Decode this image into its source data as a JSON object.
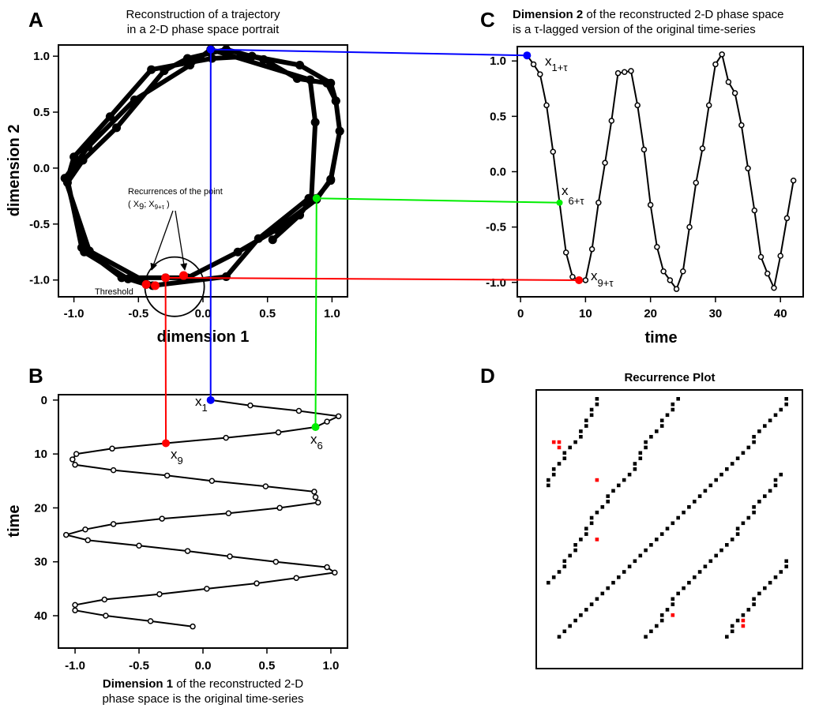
{
  "colors": {
    "blue": "#0000ff",
    "green": "#00ee00",
    "red": "#ff0000",
    "ink": "#000000"
  },
  "panels": {
    "A": {
      "letter": "A",
      "title": [
        "Reconstruction of a trajectory",
        "in a 2-D phase space portrait"
      ],
      "xlabel": "dimension 1",
      "ylabel": "dimension 2",
      "annotation": [
        "Recurrences of the point",
        "( X",
        "9",
        "; X",
        "9+τ",
        " )"
      ],
      "threshold_label": "Threshold"
    },
    "B": {
      "letter": "B",
      "ylabel": "time",
      "caption_bold": "Dimension 1",
      "caption_rest": " of the reconstructed 2-D",
      "caption_line2": "phase space is the original time-series",
      "labels": [
        {
          "main": "x",
          "sub": "1"
        },
        {
          "main": "x",
          "sub": "6"
        },
        {
          "main": "x",
          "sub": "9"
        }
      ]
    },
    "C": {
      "letter": "C",
      "title_bold": "Dimension 2",
      "title_rest": " of the reconstructed 2-D phase space",
      "title_line2": "is a τ-lagged version of the original time-series",
      "xlabel": "time",
      "labels": [
        {
          "main": "x",
          "sub": "1+τ"
        },
        {
          "main": "x",
          "sub": "6+τ"
        },
        {
          "main": "x",
          "sub": "9+τ"
        }
      ]
    },
    "D": {
      "letter": "D",
      "title": "Recurrence Plot"
    }
  },
  "chart_data": [
    {
      "id": "A",
      "type": "line",
      "xticks": [
        -1.0,
        -0.5,
        0.0,
        0.5,
        1.0
      ],
      "yticks": [
        -1.0,
        -0.5,
        0.0,
        0.5,
        1.0
      ],
      "xlim": [
        -1.12,
        1.12
      ],
      "ylim": [
        -1.15,
        1.1
      ],
      "points": [
        [
          -0.44,
          -1.04
        ],
        [
          -0.58,
          -0.99
        ],
        [
          -0.92,
          -0.75
        ],
        [
          -1.05,
          -0.13
        ],
        [
          -0.93,
          0.07
        ],
        [
          -0.67,
          0.36
        ],
        [
          -0.3,
          0.87
        ],
        [
          -0.12,
          0.98
        ],
        [
          0.18,
          1.06
        ],
        [
          0.47,
          0.97
        ],
        [
          0.73,
          0.8
        ],
        [
          0.96,
          0.76
        ],
        [
          1.03,
          0.6
        ],
        [
          1.06,
          0.33
        ],
        [
          0.99,
          -0.1
        ],
        [
          0.88,
          -0.28
        ],
        [
          0.57,
          -0.55
        ],
        [
          0.27,
          -0.75
        ],
        [
          -0.12,
          -0.98
        ],
        [
          -0.29,
          -0.98
        ],
        [
          -0.63,
          -0.98
        ],
        [
          -0.94,
          -0.71
        ],
        [
          -1.05,
          -0.1
        ],
        [
          -1.0,
          0.1
        ],
        [
          -0.72,
          0.46
        ],
        [
          -0.4,
          0.88
        ],
        [
          0.07,
          0.98
        ],
        [
          0.38,
          1.0
        ],
        [
          0.75,
          0.92
        ],
        [
          0.99,
          0.76
        ],
        [
          1.03,
          0.6
        ],
        [
          1.06,
          0.33
        ],
        [
          0.99,
          -0.11
        ],
        [
          0.88,
          -0.27
        ],
        [
          0.82,
          -0.27
        ],
        [
          0.43,
          -0.63
        ],
        [
          0.18,
          -0.97
        ],
        [
          -0.39,
          -1.05
        ],
        [
          -0.88,
          -0.74
        ],
        [
          -1.07,
          -0.09
        ],
        [
          -0.89,
          0.19
        ],
        [
          -0.53,
          0.61
        ],
        [
          -0.1,
          0.92
        ],
        [
          0.06,
          1.06
        ],
        [
          0.83,
          0.79
        ],
        [
          0.87,
          0.41
        ],
        [
          0.84,
          -0.27
        ],
        [
          0.75,
          -0.42
        ],
        [
          0.54,
          -0.64
        ]
      ],
      "recurrence_points": [
        [
          -0.44,
          -1.04
        ],
        [
          -0.37,
          -1.05
        ],
        [
          -0.29,
          -0.98
        ],
        [
          -0.15,
          -0.96
        ]
      ],
      "x1_point": [
        0.06,
        1.06
      ],
      "x6_point": [
        0.88,
        -0.27
      ],
      "threshold_circle": {
        "center": [
          -0.22,
          -1.06
        ],
        "radius": 0.23
      }
    },
    {
      "id": "B",
      "type": "line",
      "xticks": [
        -1.0,
        -0.5,
        0.0,
        0.5,
        1.0
      ],
      "yticks": [
        0,
        10,
        20,
        30,
        40
      ],
      "xlim": [
        -1.13,
        1.13
      ],
      "ylim": [
        -1,
        46
      ],
      "x": [
        0.06,
        0.37,
        0.75,
        1.06,
        0.97,
        0.88,
        0.59,
        0.18,
        -0.29,
        -0.71,
        -0.99,
        -1.02,
        -1.0,
        -0.7,
        -0.28,
        0.07,
        0.49,
        0.87,
        0.88,
        0.9,
        0.6,
        0.2,
        -0.32,
        -0.7,
        -0.92,
        -1.07,
        -0.9,
        -0.5,
        -0.12,
        0.21,
        0.57,
        0.97,
        1.03,
        0.73,
        0.42,
        0.03,
        -0.34,
        -0.77,
        -1.0,
        -1.0,
        -0.76,
        -0.41,
        -0.08
      ],
      "y": [
        0,
        1,
        2,
        3,
        4,
        5,
        6,
        7,
        8,
        9,
        10,
        11,
        12,
        13,
        14,
        15,
        16,
        17,
        18,
        19,
        20,
        21,
        22,
        23,
        24,
        25,
        26,
        27,
        28,
        29,
        30,
        31,
        32,
        33,
        34,
        35,
        36,
        37,
        38,
        39,
        40,
        41,
        42
      ]
    },
    {
      "id": "C",
      "type": "line",
      "xlabel": "time",
      "xticks": [
        0,
        10,
        20,
        30,
        40
      ],
      "yticks": [
        -1.0,
        -0.5,
        0.0,
        0.5,
        1.0
      ],
      "xlim": [
        -0.5,
        43.5
      ],
      "ylim": [
        -1.13,
        1.13
      ],
      "t": [
        1,
        2,
        3,
        4,
        5,
        6,
        7,
        8,
        9,
        10,
        11,
        12,
        13,
        14,
        15,
        16,
        17,
        18,
        19,
        20,
        21,
        22,
        23,
        24,
        25,
        26,
        27,
        28,
        29,
        30,
        31,
        32,
        33,
        34,
        35,
        36,
        37,
        38,
        39,
        40,
        41,
        42
      ],
      "values": [
        1.05,
        0.97,
        0.88,
        0.6,
        0.18,
        -0.28,
        -0.73,
        -0.95,
        -0.98,
        -0.98,
        -0.7,
        -0.28,
        0.08,
        0.46,
        0.89,
        0.9,
        0.91,
        0.6,
        0.2,
        -0.3,
        -0.68,
        -0.9,
        -0.98,
        -1.06,
        -0.9,
        -0.5,
        -0.1,
        0.21,
        0.6,
        0.97,
        1.06,
        0.81,
        0.71,
        0.42,
        0.03,
        -0.35,
        -0.77,
        -0.92,
        -1.05,
        -0.76,
        -0.42,
        -0.08
      ],
      "highlight": [
        {
          "t": 1,
          "v": 1.05,
          "color": "blue"
        },
        {
          "t": 6,
          "v": -0.28,
          "color": "green"
        },
        {
          "t": 9,
          "v": -0.98,
          "color": "red"
        }
      ]
    },
    {
      "id": "D",
      "type": "heatmap",
      "title": "Recurrence Plot",
      "size": 45,
      "black_cells": [
        [
          0,
          9
        ],
        [
          1,
          9
        ],
        [
          2,
          8
        ],
        [
          3,
          8
        ],
        [
          4,
          7
        ],
        [
          5,
          7
        ],
        [
          6,
          6
        ],
        [
          7,
          6
        ],
        [
          8,
          5
        ],
        [
          9,
          4
        ],
        [
          10,
          3
        ],
        [
          11,
          3
        ],
        [
          12,
          2
        ],
        [
          13,
          1
        ],
        [
          14,
          1
        ],
        [
          15,
          0
        ],
        [
          16,
          0
        ],
        [
          0,
          24
        ],
        [
          1,
          23
        ],
        [
          2,
          23
        ],
        [
          3,
          22
        ],
        [
          4,
          21
        ],
        [
          5,
          21
        ],
        [
          6,
          20
        ],
        [
          7,
          19
        ],
        [
          8,
          18
        ],
        [
          9,
          18
        ],
        [
          10,
          17
        ],
        [
          11,
          17
        ],
        [
          12,
          16
        ],
        [
          13,
          16
        ],
        [
          14,
          15
        ],
        [
          15,
          14
        ],
        [
          16,
          13
        ],
        [
          17,
          12
        ],
        [
          18,
          11
        ],
        [
          19,
          11
        ],
        [
          20,
          10
        ],
        [
          21,
          9
        ],
        [
          22,
          8
        ],
        [
          23,
          8
        ],
        [
          24,
          7
        ],
        [
          25,
          7
        ],
        [
          26,
          6
        ],
        [
          27,
          5
        ],
        [
          28,
          5
        ],
        [
          29,
          4
        ],
        [
          30,
          3
        ],
        [
          31,
          3
        ],
        [
          32,
          2
        ],
        [
          33,
          1
        ],
        [
          34,
          0
        ],
        [
          0,
          44
        ],
        [
          1,
          44
        ],
        [
          2,
          43
        ],
        [
          3,
          42
        ],
        [
          4,
          41
        ],
        [
          5,
          40
        ],
        [
          6,
          39
        ],
        [
          7,
          38
        ],
        [
          8,
          38
        ],
        [
          9,
          37
        ],
        [
          10,
          36
        ],
        [
          11,
          35
        ],
        [
          12,
          34
        ],
        [
          13,
          33
        ],
        [
          14,
          32
        ],
        [
          15,
          31
        ],
        [
          16,
          30
        ],
        [
          17,
          29
        ],
        [
          18,
          28
        ],
        [
          19,
          27
        ],
        [
          20,
          26
        ],
        [
          21,
          25
        ],
        [
          22,
          24
        ],
        [
          23,
          23
        ],
        [
          24,
          22
        ],
        [
          25,
          21
        ],
        [
          26,
          20
        ],
        [
          27,
          19
        ],
        [
          28,
          18
        ],
        [
          29,
          17
        ],
        [
          30,
          16
        ],
        [
          31,
          15
        ],
        [
          32,
          14
        ],
        [
          33,
          13
        ],
        [
          34,
          12
        ],
        [
          35,
          11
        ],
        [
          36,
          10
        ],
        [
          37,
          9
        ],
        [
          38,
          8
        ],
        [
          39,
          7
        ],
        [
          40,
          6
        ],
        [
          41,
          5
        ],
        [
          42,
          4
        ],
        [
          43,
          3
        ],
        [
          44,
          2
        ],
        [
          14,
          43
        ],
        [
          15,
          42
        ],
        [
          16,
          42
        ],
        [
          17,
          41
        ],
        [
          18,
          40
        ],
        [
          19,
          39
        ],
        [
          20,
          38
        ],
        [
          21,
          38
        ],
        [
          22,
          37
        ],
        [
          23,
          36
        ],
        [
          24,
          35
        ],
        [
          25,
          35
        ],
        [
          26,
          34
        ],
        [
          27,
          33
        ],
        [
          28,
          32
        ],
        [
          29,
          31
        ],
        [
          30,
          30
        ],
        [
          31,
          29
        ],
        [
          32,
          28
        ],
        [
          33,
          27
        ],
        [
          34,
          26
        ],
        [
          35,
          25
        ],
        [
          36,
          24
        ],
        [
          37,
          23
        ],
        [
          38,
          23
        ],
        [
          39,
          22
        ],
        [
          40,
          21
        ],
        [
          41,
          21
        ],
        [
          42,
          20
        ],
        [
          43,
          19
        ],
        [
          44,
          18
        ],
        [
          30,
          44
        ],
        [
          31,
          44
        ],
        [
          32,
          43
        ],
        [
          33,
          42
        ],
        [
          34,
          41
        ],
        [
          35,
          40
        ],
        [
          36,
          39
        ],
        [
          37,
          38
        ],
        [
          38,
          38
        ],
        [
          39,
          37
        ],
        [
          40,
          36
        ],
        [
          41,
          35
        ],
        [
          42,
          34
        ],
        [
          43,
          34
        ],
        [
          44,
          33
        ]
      ],
      "red_cells": [
        [
          8,
          1
        ],
        [
          8,
          2
        ],
        [
          9,
          2
        ],
        [
          15,
          9
        ],
        [
          26,
          9
        ],
        [
          40,
          23
        ],
        [
          41,
          36
        ],
        [
          42,
          36
        ]
      ]
    }
  ]
}
